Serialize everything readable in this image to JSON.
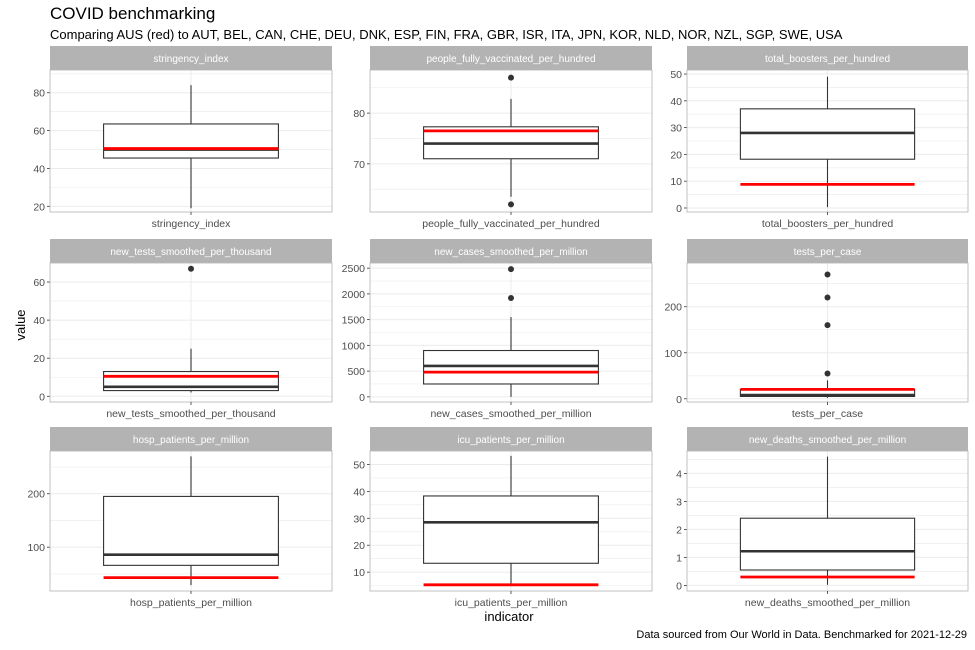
{
  "title": "COVID benchmarking",
  "subtitle": "Comparing AUS (red) to AUT, BEL, CAN, CHE, DEU, DNK, ESP, FIN, FRA, GBR, ISR, ITA, JPN, KOR, NLD, NOR, NZL, SGP, SWE, USA",
  "x_axis_label": "indicator",
  "y_axis_label": "value",
  "caption": "Data sourced from Our World in Data. Benchmarked for 2021-12-29",
  "colors": {
    "benchmark": "#ff0000",
    "box": "#333333",
    "strip": "#b3b3b3",
    "grid": "#ebebeb"
  },
  "chart_data": [
    {
      "type": "boxplot",
      "panel": "stringency_index",
      "x_tick": "stringency_index",
      "ylim": [
        17,
        92
      ],
      "y_ticks": [
        20,
        40,
        60,
        80
      ],
      "whisker_low": 19,
      "q1": 45.5,
      "median": 50,
      "q3": 63.5,
      "whisker_high": 84,
      "outliers": [],
      "aus_value": 50.5
    },
    {
      "type": "boxplot",
      "panel": "people_fully_vaccinated_per_hundred",
      "x_tick": "people_fully_vaccinated_per_hundred",
      "ylim": [
        60.5,
        88.5
      ],
      "y_ticks": [
        70,
        80
      ],
      "whisker_low": 63.5,
      "q1": 71,
      "median": 74,
      "q3": 77.3,
      "whisker_high": 82.8,
      "outliers": [
        62,
        87
      ],
      "aus_value": 76.5
    },
    {
      "type": "boxplot",
      "panel": "total_boosters_per_hundred",
      "x_tick": "total_boosters_per_hundred",
      "ylim": [
        -1.5,
        51.5
      ],
      "y_ticks": [
        0,
        10,
        20,
        30,
        40,
        50
      ],
      "whisker_low": 0.3,
      "q1": 18.2,
      "median": 28,
      "q3": 37,
      "whisker_high": 49,
      "outliers": [],
      "aus_value": 8.8
    },
    {
      "type": "boxplot",
      "panel": "new_tests_smoothed_per_thousand",
      "x_tick": "new_tests_smoothed_per_thousand",
      "ylim": [
        -3,
        70
      ],
      "y_ticks": [
        0,
        20,
        40,
        60
      ],
      "whisker_low": 2,
      "q1": 3,
      "median": 5,
      "q3": 13,
      "whisker_high": 25,
      "outliers": [
        67
      ],
      "aus_value": 10.5
    },
    {
      "type": "boxplot",
      "panel": "new_cases_smoothed_per_million",
      "x_tick": "new_cases_smoothed_per_million",
      "ylim": [
        -100,
        2600
      ],
      "y_ticks": [
        0,
        500,
        1000,
        1500,
        2000,
        2500
      ],
      "whisker_low": 0,
      "q1": 250,
      "median": 600,
      "q3": 900,
      "whisker_high": 1550,
      "outliers": [
        1920,
        2480
      ],
      "aus_value": 480
    },
    {
      "type": "boxplot",
      "panel": "tests_per_case",
      "x_tick": "tests_per_case",
      "ylim": [
        -7,
        295
      ],
      "y_ticks": [
        0,
        100,
        200
      ],
      "whisker_low": 2,
      "q1": 5,
      "median": 8,
      "q3": 20,
      "whisker_high": 40,
      "outliers": [
        55,
        160,
        220,
        270
      ],
      "aus_value": 20.5
    },
    {
      "type": "boxplot",
      "panel": "hosp_patients_per_million",
      "x_tick": "hosp_patients_per_million",
      "ylim": [
        18,
        280
      ],
      "y_ticks": [
        100,
        200
      ],
      "whisker_low": 29,
      "q1": 66,
      "median": 86,
      "q3": 195,
      "whisker_high": 270,
      "outliers": [],
      "aus_value": 43
    },
    {
      "type": "boxplot",
      "panel": "icu_patients_per_million",
      "x_tick": "icu_patients_per_million",
      "ylim": [
        3,
        55
      ],
      "y_ticks": [
        10,
        20,
        30,
        40,
        50
      ],
      "whisker_low": 5.4,
      "q1": 13.3,
      "median": 28.5,
      "q3": 38.3,
      "whisker_high": 53.2,
      "outliers": [],
      "aus_value": 5.3
    },
    {
      "type": "boxplot",
      "panel": "new_deaths_smoothed_per_million",
      "x_tick": "new_deaths_smoothed_per_million",
      "ylim": [
        -0.2,
        4.8
      ],
      "y_ticks": [
        0,
        1,
        2,
        3,
        4
      ],
      "whisker_low": 0.02,
      "q1": 0.55,
      "median": 1.22,
      "q3": 2.4,
      "whisker_high": 4.6,
      "outliers": [],
      "aus_value": 0.3
    }
  ]
}
